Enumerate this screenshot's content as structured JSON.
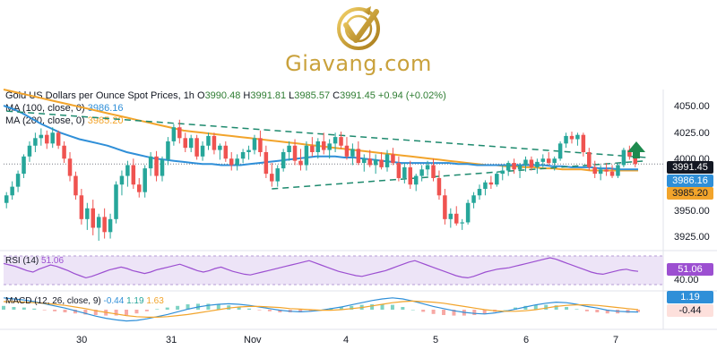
{
  "site": {
    "name": "Giavang.com"
  },
  "header": {
    "title": "Gold US Dollars per Ounce Spot Prices, 1h",
    "o_label": "O",
    "open": "3990.48",
    "h_label": "H",
    "high": "3991.81",
    "l_label": "L",
    "low": "3985.57",
    "c_label": "C",
    "close": "3991.45",
    "change": "+0.94 (+0.02%)",
    "ma100_label": "MA (100, close, 0)",
    "ma100_value": "3986.16",
    "ma200_label": "MA (200, close, 0)",
    "ma200_value": "3985.20"
  },
  "indicators": {
    "rsi_label": "RSI (14)",
    "rsi_value": "51.06",
    "macd_label": "MACD (12, 26, close, 9)",
    "macd_v1": "-0.44",
    "macd_v2": "1.19",
    "macd_v3": "1.63"
  },
  "badges": {
    "price": "3991.45",
    "ma100": "3986.16",
    "ma200": "3985.20",
    "rsi": "51.06",
    "rsi_level": "40.00",
    "macd_pos": "1.19",
    "macd_neg": "-0.44"
  },
  "colors": {
    "up": "#26a69a",
    "down": "#ef5350",
    "ma100": "#2f8fd8",
    "ma200": "#f2a42b",
    "trend": "#1e8a6e",
    "rsi": "#9c4fd1",
    "gold": "#c9a13b"
  },
  "chart_data": {
    "type": "line",
    "subtype": "candlestick",
    "y_ticks": [
      "4050.00",
      "4025.00",
      "4000.00",
      "3950.00",
      "3925.00"
    ],
    "x_ticks": [
      "30",
      "31",
      "Nov",
      "4",
      "5",
      "6",
      "7"
    ],
    "ylim": [
      3915,
      4060
    ],
    "candles": [
      [
        3955,
        3965,
        3950,
        3962
      ],
      [
        3962,
        3975,
        3958,
        3970
      ],
      [
        3970,
        3985,
        3965,
        3982
      ],
      [
        3982,
        4000,
        3978,
        3998
      ],
      [
        3998,
        4012,
        3993,
        4008
      ],
      [
        4008,
        4020,
        4002,
        4015
      ],
      [
        4015,
        4024,
        4008,
        4018
      ],
      [
        4018,
        4022,
        4005,
        4010
      ],
      [
        4010,
        4025,
        4006,
        4020
      ],
      [
        4020,
        4022,
        4005,
        4008
      ],
      [
        4008,
        4012,
        3992,
        3996
      ],
      [
        3996,
        4002,
        3975,
        3980
      ],
      [
        3980,
        3984,
        3958,
        3962
      ],
      [
        3962,
        3968,
        3935,
        3940
      ],
      [
        3940,
        3955,
        3930,
        3950
      ],
      [
        3950,
        3958,
        3925,
        3932
      ],
      [
        3932,
        3945,
        3920,
        3942
      ],
      [
        3942,
        3950,
        3922,
        3928
      ],
      [
        3928,
        3945,
        3922,
        3940
      ],
      [
        3940,
        3975,
        3936,
        3972
      ],
      [
        3972,
        3985,
        3962,
        3980
      ],
      [
        3980,
        3994,
        3970,
        3990
      ],
      [
        3990,
        3996,
        3968,
        3972
      ],
      [
        3972,
        3978,
        3960,
        3965
      ],
      [
        3965,
        3990,
        3960,
        3987
      ],
      [
        3987,
        4002,
        3980,
        3998
      ],
      [
        3998,
        4003,
        3975,
        3980
      ],
      [
        3980,
        3998,
        3975,
        3995
      ],
      [
        3995,
        4016,
        3990,
        4012
      ],
      [
        4012,
        4028,
        4008,
        4025
      ],
      [
        4025,
        4032,
        4010,
        4015
      ],
      [
        4015,
        4020,
        4002,
        4006
      ],
      [
        4006,
        4018,
        4002,
        4015
      ],
      [
        4015,
        4018,
        3995,
        3998
      ],
      [
        3998,
        4012,
        3994,
        4008
      ],
      [
        4008,
        4020,
        4004,
        4017
      ],
      [
        4017,
        4020,
        4000,
        4004
      ],
      [
        4004,
        4010,
        3995,
        4008
      ],
      [
        4008,
        4012,
        3993,
        3996
      ],
      [
        3996,
        4002,
        3985,
        3990
      ],
      [
        3990,
        4000,
        3985,
        3996
      ],
      [
        3996,
        4005,
        3992,
        4002
      ],
      [
        4002,
        4008,
        3995,
        4004
      ],
      [
        4004,
        4018,
        4000,
        4015
      ],
      [
        4015,
        4022,
        3998,
        4002
      ],
      [
        4002,
        4008,
        3978,
        3982
      ],
      [
        3982,
        3992,
        3970,
        3975
      ],
      [
        3975,
        3990,
        3970,
        3987
      ],
      [
        3987,
        4005,
        3984,
        4002
      ],
      [
        4002,
        4012,
        3994,
        4008
      ],
      [
        4008,
        4014,
        3990,
        3994
      ],
      [
        3994,
        4005,
        3985,
        3990
      ],
      [
        3990,
        4012,
        3985,
        4008
      ],
      [
        4008,
        4016,
        3998,
        4002
      ],
      [
        4002,
        4015,
        3996,
        4012
      ],
      [
        4012,
        4020,
        4000,
        4004
      ],
      [
        4004,
        4014,
        3996,
        4010
      ],
      [
        4010,
        4020,
        4002,
        4016
      ],
      [
        4016,
        4021,
        4005,
        4008
      ],
      [
        4008,
        4016,
        3995,
        3998
      ],
      [
        3998,
        4010,
        3990,
        4005
      ],
      [
        4005,
        4012,
        3990,
        3992
      ],
      [
        3992,
        4000,
        3984,
        3996
      ],
      [
        3996,
        4004,
        3988,
        3990
      ],
      [
        3990,
        4000,
        3982,
        3995
      ],
      [
        3995,
        4002,
        3986,
        3988
      ],
      [
        3988,
        4004,
        3984,
        4000
      ],
      [
        4000,
        4006,
        3990,
        3992
      ],
      [
        3992,
        3998,
        3975,
        3978
      ],
      [
        3978,
        3992,
        3973,
        3988
      ],
      [
        3988,
        3994,
        3968,
        3972
      ],
      [
        3972,
        3982,
        3966,
        3980
      ],
      [
        3980,
        3990,
        3975,
        3986
      ],
      [
        3986,
        3994,
        3980,
        3990
      ],
      [
        3990,
        3996,
        3975,
        3978
      ],
      [
        3978,
        3985,
        3958,
        3962
      ],
      [
        3962,
        3968,
        3935,
        3940
      ],
      [
        3940,
        3950,
        3932,
        3945
      ],
      [
        3945,
        3952,
        3934,
        3936
      ],
      [
        3936,
        3940,
        3930,
        3937
      ],
      [
        3937,
        3958,
        3935,
        3955
      ],
      [
        3955,
        3965,
        3950,
        3962
      ],
      [
        3962,
        3972,
        3958,
        3968
      ],
      [
        3968,
        3976,
        3962,
        3974
      ],
      [
        3974,
        3980,
        3968,
        3972
      ],
      [
        3972,
        3984,
        3970,
        3982
      ],
      [
        3982,
        3990,
        3976,
        3985
      ],
      [
        3985,
        3994,
        3980,
        3992
      ],
      [
        3992,
        3996,
        3982,
        3986
      ],
      [
        3986,
        3992,
        3978,
        3990
      ],
      [
        3990,
        3998,
        3984,
        3995
      ],
      [
        3995,
        3998,
        3985,
        3988
      ],
      [
        3988,
        3996,
        3982,
        3993
      ],
      [
        3993,
        4000,
        3988,
        3996
      ],
      [
        3996,
        4002,
        3990,
        3992
      ],
      [
        3992,
        3998,
        3985,
        3996
      ],
      [
        3996,
        4012,
        3994,
        4010
      ],
      [
        4010,
        4020,
        4006,
        4017
      ],
      [
        4017,
        4021,
        4010,
        4014
      ],
      [
        4014,
        4020,
        4008,
        4018
      ],
      [
        4018,
        4020,
        3998,
        4002
      ],
      [
        4002,
        4006,
        3985,
        3988
      ],
      [
        3988,
        3994,
        3978,
        3982
      ],
      [
        3982,
        3990,
        3976,
        3986
      ],
      [
        3986,
        3992,
        3980,
        3984
      ],
      [
        3984,
        3990,
        3978,
        3980
      ],
      [
        3980,
        3992,
        3978,
        3990
      ],
      [
        3990,
        4006,
        3988,
        4004
      ],
      [
        4004,
        4008,
        3995,
        3998
      ],
      [
        3998,
        4002,
        3988,
        3991
      ]
    ],
    "ma100": [
      4045,
      4042,
      4038,
      4033,
      4028,
      4024,
      4020,
      4017,
      4014,
      4012,
      4010,
      4008,
      4005,
      4002,
      4000,
      3998,
      3996,
      3995,
      3994,
      3993,
      3992,
      3991,
      3991,
      3990,
      3990,
      3990,
      3991,
      3992,
      3993,
      3994,
      3995,
      3996,
      3997,
      3998,
      3998,
      3998,
      3997,
      3997,
      3996,
      3995,
      3994,
      3993,
      3992,
      3992,
      3992,
      3992,
      3992,
      3992,
      3991,
      3991,
      3990,
      3990,
      3990,
      3990,
      3990,
      3990,
      3990,
      3990,
      3989,
      3989,
      3988,
      3988,
      3988,
      3987,
      3987,
      3986,
      3986,
      3986
    ],
    "ma200": [
      4060,
      4058,
      4056,
      4054,
      4052,
      4050,
      4048,
      4046,
      4044,
      4042,
      4040,
      4038,
      4036,
      4034,
      4032,
      4030,
      4028,
      4026,
      4024,
      4022,
      4021,
      4020,
      4019,
      4018,
      4017,
      4016,
      4015,
      4014,
      4013,
      4012,
      4011,
      4010,
      4009,
      4008,
      4007,
      4006,
      4005,
      4004,
      4003,
      4002,
      4001,
      4000,
      3999,
      3998,
      3997,
      3996,
      3995,
      3994,
      3993,
      3992,
      3991,
      3990,
      3990,
      3989,
      3989,
      3988,
      3988,
      3987,
      3987,
      3986,
      3986,
      3986,
      3985,
      3985,
      3985,
      3985,
      3985,
      3985
    ],
    "trendlines": [
      {
        "from": [
          0,
          4040
        ],
        "to": [
          111,
          3997
        ],
        "style": "dashed"
      },
      {
        "from": [
          46,
          3968
        ],
        "to": [
          111,
          3994
        ],
        "style": "dashed"
      }
    ],
    "rsi_ticks": [
      "40.00"
    ],
    "rsi": [
      62,
      60,
      58,
      55,
      52,
      50,
      54,
      57,
      60,
      58,
      55,
      52,
      48,
      45,
      42,
      44,
      47,
      50,
      53,
      55,
      57,
      55,
      52,
      50,
      48,
      50,
      53,
      55,
      57,
      59,
      61,
      58,
      55,
      52,
      50,
      52,
      55,
      57,
      54,
      51,
      49,
      47,
      46,
      48,
      50,
      52,
      54,
      56,
      58,
      60,
      62,
      64,
      66,
      63,
      60,
      57,
      54,
      51,
      49,
      47,
      45,
      44,
      46,
      48,
      50,
      52,
      55,
      58,
      61,
      64,
      66,
      63,
      60,
      57,
      54,
      51,
      48,
      45,
      43,
      42,
      44,
      47,
      50,
      52,
      54,
      55,
      56,
      58,
      60,
      62,
      64,
      66,
      68,
      70,
      68,
      65,
      62,
      59,
      56,
      53,
      50,
      48,
      47,
      49,
      51,
      53,
      54,
      52,
      51
    ],
    "macd_line": [
      2.2,
      2.0,
      1.8,
      1.5,
      1.1,
      0.7,
      0.3,
      -0.2,
      -0.7,
      -1.2,
      -1.6,
      -1.9,
      -2.1,
      -2.0,
      -1.7,
      -1.3,
      -0.9,
      -0.4,
      0.1,
      0.5,
      0.8,
      1.0,
      1.1,
      1.0,
      0.8,
      0.5,
      0.2,
      -0.1,
      -0.3,
      -0.4,
      -0.3,
      -0.1,
      0.2,
      0.5,
      0.9,
      1.3,
      1.7,
      2.0,
      2.2,
      2.0,
      1.6,
      1.1,
      0.6,
      0.2,
      -0.2,
      -0.5,
      -0.7,
      -0.8,
      -0.6,
      -0.3,
      0.1,
      0.5,
      0.9,
      1.2,
      1.4,
      1.3,
      1.0,
      0.6,
      0.3,
      -0.1,
      -0.3,
      -0.4,
      -0.44
    ],
    "macd_signal": [
      1.5,
      1.5,
      1.4,
      1.3,
      1.2,
      1.0,
      0.8,
      0.5,
      0.2,
      -0.2,
      -0.5,
      -0.8,
      -1.1,
      -1.3,
      -1.4,
      -1.4,
      -1.3,
      -1.1,
      -0.9,
      -0.6,
      -0.3,
      0.0,
      0.3,
      0.5,
      0.6,
      0.6,
      0.5,
      0.4,
      0.2,
      0.1,
      0.0,
      -0.1,
      -0.1,
      0.0,
      0.2,
      0.4,
      0.7,
      1.0,
      1.3,
      1.5,
      1.6,
      1.5,
      1.4,
      1.2,
      0.9,
      0.6,
      0.3,
      0.0,
      -0.2,
      -0.3,
      -0.3,
      -0.2,
      0.0,
      0.3,
      0.6,
      0.8,
      0.9,
      0.9,
      0.8,
      0.6,
      0.4,
      0.2,
      0.0
    ]
  }
}
